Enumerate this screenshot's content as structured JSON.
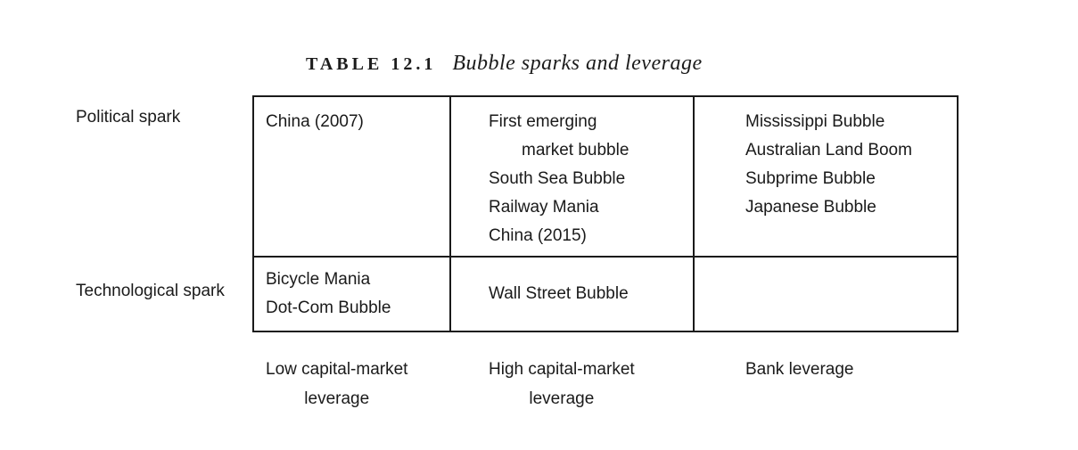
{
  "header": {
    "table_label": "TABLE 12.1",
    "table_caption": "Bubble sparks and leverage"
  },
  "matrix": {
    "row_labels": [
      "Political spark",
      "Technological spark"
    ],
    "column_labels": [
      {
        "line1": "Low capital-market",
        "line2": "leverage"
      },
      {
        "line1": "High capital-market",
        "line2": "leverage"
      },
      {
        "line1": "Bank leverage",
        "line2": ""
      }
    ],
    "cells": [
      [
        {
          "lines": [
            "China (2007)"
          ]
        },
        {
          "lines": [
            "First emerging",
            "market bubble",
            "South Sea Bubble",
            "Railway Mania",
            "China (2015)"
          ]
        },
        {
          "lines": [
            "Mississippi Bubble",
            "Australian Land Boom",
            "Subprime Bubble",
            "Japanese Bubble"
          ]
        }
      ],
      [
        {
          "lines": [
            "Bicycle Mania",
            "Dot-Com Bubble"
          ]
        },
        {
          "lines": [
            "Wall Street Bubble"
          ]
        },
        {
          "lines": []
        }
      ]
    ]
  }
}
